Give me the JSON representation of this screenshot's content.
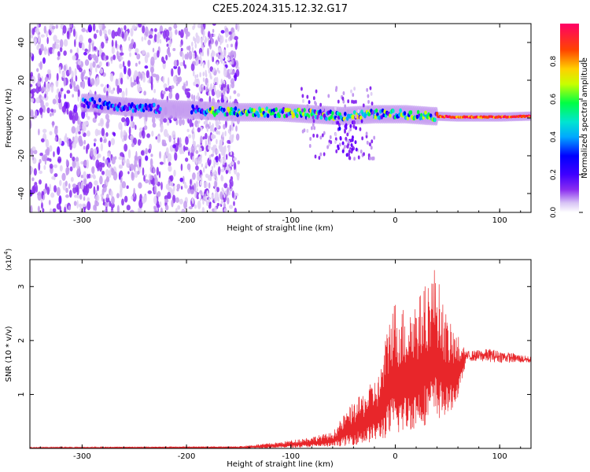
{
  "title": "C2E5.2024.315.12.32.G17",
  "colors": {
    "line": "#e8262a",
    "colormap": [
      "#ffffff",
      "#e0d0f5",
      "#c39af0",
      "#8a2ef0",
      "#6600ff",
      "#0000ff",
      "#00a8ff",
      "#00e5d0",
      "#00ff44",
      "#c8ff00",
      "#ffd000",
      "#ff4400",
      "#ff0066"
    ]
  },
  "chart_data": [
    {
      "type": "heatmap",
      "title": "C2E5.2024.315.12.32.G17",
      "xlabel": "Height of straight line (km)",
      "ylabel": "Frequency (Hz)",
      "xlim": [
        -350,
        130
      ],
      "ylim": [
        -50,
        50
      ],
      "xticks": [
        -300,
        -200,
        -100,
        0,
        100
      ],
      "xtick_labels": [
        "-300",
        "-200",
        "-100",
        "0",
        "100"
      ],
      "yticks": [
        -40,
        -20,
        0,
        20,
        40
      ],
      "ytick_labels": [
        "-40",
        "-20",
        "0",
        "20",
        "40"
      ],
      "colorbar": {
        "label": "Normalized spectral amplitude",
        "range": [
          0,
          1
        ],
        "ticks": [
          0.0,
          0.2,
          0.4,
          0.6,
          0.8
        ],
        "tick_labels": [
          "0.0",
          "0.2",
          "0.4",
          "0.6",
          "0.8"
        ]
      },
      "band_center_hz": [
        {
          "x": -290,
          "f": 8
        },
        {
          "x": -260,
          "f": 6
        },
        {
          "x": -230,
          "f": 5
        },
        {
          "x": -185,
          "f": 4
        },
        {
          "x": -150,
          "f": 3
        },
        {
          "x": -110,
          "f": 3
        },
        {
          "x": -80,
          "f": 2
        },
        {
          "x": -50,
          "f": 1
        },
        {
          "x": -20,
          "f": 2
        },
        {
          "x": 10,
          "f": 2
        },
        {
          "x": 35,
          "f": 1
        },
        {
          "x": 60,
          "f": 0.5
        },
        {
          "x": 100,
          "f": 0.5
        },
        {
          "x": 130,
          "f": 1
        }
      ],
      "noise_region_x": [
        -350,
        -160
      ]
    },
    {
      "type": "line",
      "title": "",
      "xlabel": "Height of straight line (km)",
      "ylabel": "SNR (10 * v/v)",
      "y_multiplier": "(x10",
      "y_multiplier_exp": "4",
      "y_multiplier_close": ")",
      "xlim": [
        -350,
        130
      ],
      "ylim": [
        0,
        3.5
      ],
      "xticks": [
        -300,
        -200,
        -100,
        0,
        100
      ],
      "xtick_labels": [
        "-300",
        "-200",
        "-100",
        "0",
        "100"
      ],
      "yticks": [
        1,
        2,
        3
      ],
      "ytick_labels": [
        "1",
        "2",
        "3"
      ],
      "series": [
        {
          "envelope": [
            {
              "x": -350,
              "lo": 0.0,
              "hi": 0.02
            },
            {
              "x": -250,
              "lo": 0.0,
              "hi": 0.03
            },
            {
              "x": -150,
              "lo": 0.0,
              "hi": 0.04
            },
            {
              "x": -110,
              "lo": 0.01,
              "hi": 0.12
            },
            {
              "x": -80,
              "lo": 0.02,
              "hi": 0.22
            },
            {
              "x": -60,
              "lo": 0.03,
              "hi": 0.3
            },
            {
              "x": -45,
              "lo": 0.05,
              "hi": 0.75
            },
            {
              "x": -30,
              "lo": 0.08,
              "hi": 1.05
            },
            {
              "x": -15,
              "lo": 0.15,
              "hi": 1.4
            },
            {
              "x": -3,
              "lo": 0.2,
              "hi": 2.8
            },
            {
              "x": 10,
              "lo": 0.3,
              "hi": 2.6
            },
            {
              "x": 25,
              "lo": 0.4,
              "hi": 2.9
            },
            {
              "x": 38,
              "lo": 0.5,
              "hi": 3.4
            },
            {
              "x": 50,
              "lo": 0.6,
              "hi": 2.4
            },
            {
              "x": 60,
              "lo": 0.9,
              "hi": 2.1
            },
            {
              "x": 68,
              "lo": 1.62,
              "hi": 1.8
            },
            {
              "x": 90,
              "lo": 1.6,
              "hi": 1.85
            },
            {
              "x": 130,
              "lo": 1.58,
              "hi": 1.7
            }
          ]
        }
      ]
    }
  ]
}
